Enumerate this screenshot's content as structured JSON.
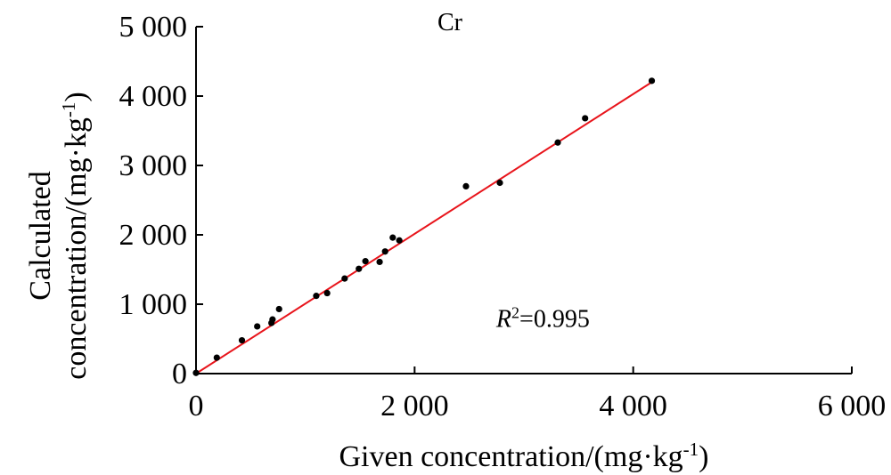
{
  "chart_data": {
    "type": "scatter",
    "title": "Cr",
    "xlabel": "Given concentration/(mg·kg",
    "xlabel_sup": "-1",
    "xlabel_tail": ")",
    "ylabel_line1": "Calculated",
    "ylabel_line2": "concentration/(mg·kg",
    "ylabel_sup": "-1",
    "ylabel_tail": ")",
    "xlim": [
      0,
      6000
    ],
    "ylim": [
      0,
      5000
    ],
    "x_ticks": [
      0,
      2000,
      4000,
      6000
    ],
    "x_tick_labels": [
      "0",
      "2 000",
      "4 000",
      "6 000"
    ],
    "y_ticks": [
      0,
      1000,
      2000,
      3000,
      4000,
      5000
    ],
    "y_tick_labels": [
      "0",
      "1 000",
      "2 000",
      "3 000",
      "4 000",
      "5 000"
    ],
    "grid": false,
    "points": [
      {
        "x": 0,
        "y": 10
      },
      {
        "x": 190,
        "y": 230
      },
      {
        "x": 420,
        "y": 480
      },
      {
        "x": 560,
        "y": 680
      },
      {
        "x": 690,
        "y": 730
      },
      {
        "x": 700,
        "y": 780
      },
      {
        "x": 760,
        "y": 930
      },
      {
        "x": 1100,
        "y": 1120
      },
      {
        "x": 1200,
        "y": 1160
      },
      {
        "x": 1360,
        "y": 1370
      },
      {
        "x": 1490,
        "y": 1510
      },
      {
        "x": 1550,
        "y": 1620
      },
      {
        "x": 1680,
        "y": 1610
      },
      {
        "x": 1730,
        "y": 1760
      },
      {
        "x": 1800,
        "y": 1960
      },
      {
        "x": 1860,
        "y": 1920
      },
      {
        "x": 2470,
        "y": 2700
      },
      {
        "x": 2780,
        "y": 2750
      },
      {
        "x": 3310,
        "y": 3330
      },
      {
        "x": 3560,
        "y": 3680
      },
      {
        "x": 4170,
        "y": 4220
      }
    ],
    "fit_line": {
      "x": [
        0,
        4170
      ],
      "y": [
        0,
        4200
      ],
      "color": "#e8141b"
    },
    "point_color": "#000000",
    "annotation": {
      "prefix": "R",
      "sup": "2",
      "text": "=0.995",
      "x": 2600,
      "y": 800
    }
  }
}
